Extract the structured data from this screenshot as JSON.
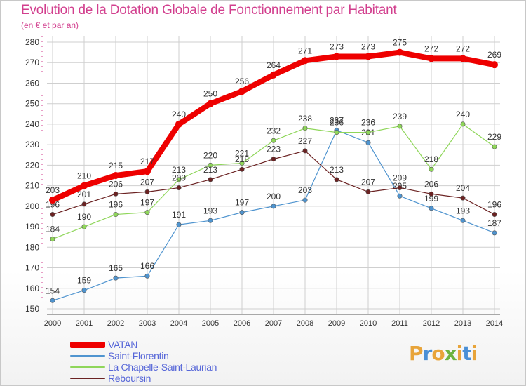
{
  "title": "Evolution de la Dotation Globale de Fonctionnement par Habitant",
  "subtitle": "(en € et par an)",
  "logo": {
    "text": "Proxiti",
    "letters": [
      "P",
      "r",
      "o",
      "x",
      "i",
      "t",
      "i"
    ],
    "colors": [
      "#e8a43a",
      "#4a8fd6",
      "#e8a43a",
      "#6cb33f",
      "#e8a43a",
      "#4a8fd6",
      "#e8a43a"
    ]
  },
  "chart_data": {
    "type": "line",
    "title": "Evolution de la Dotation Globale de Fonctionnement par Habitant",
    "subtitle": "(en € et par an)",
    "x": [
      "2000",
      "2001",
      "2002",
      "2003",
      "2004",
      "2005",
      "2006",
      "2007",
      "2008",
      "2009",
      "2010",
      "2011",
      "2012",
      "2013",
      "2014"
    ],
    "ylim": [
      150,
      280
    ],
    "yticks": [
      150,
      160,
      170,
      180,
      190,
      200,
      210,
      220,
      230,
      240,
      250,
      260,
      270,
      280
    ],
    "grid": true,
    "legend_position": "bottom-left",
    "series": [
      {
        "name": "VATAN",
        "color": "#ee0000",
        "values": [
          203,
          210,
          215,
          217,
          240,
          250,
          256,
          264,
          271,
          273,
          273,
          275,
          272,
          272,
          269
        ]
      },
      {
        "name": "Saint-Florentin",
        "color": "#4f94cf",
        "values": [
          154,
          159,
          165,
          166,
          191,
          193,
          197,
          200,
          203,
          237,
          231,
          205,
          199,
          193,
          187
        ]
      },
      {
        "name": "La Chapelle-Saint-Laurian",
        "color": "#8fd65a",
        "values": [
          184,
          190,
          196,
          197,
          213,
          220,
          221,
          232,
          238,
          236,
          236,
          239,
          218,
          240,
          229
        ]
      },
      {
        "name": "Reboursin",
        "color": "#6b2222",
        "values": [
          196,
          201,
          206,
          207,
          209,
          213,
          218,
          223,
          227,
          213,
          207,
          209,
          206,
          204,
          196
        ]
      }
    ]
  }
}
